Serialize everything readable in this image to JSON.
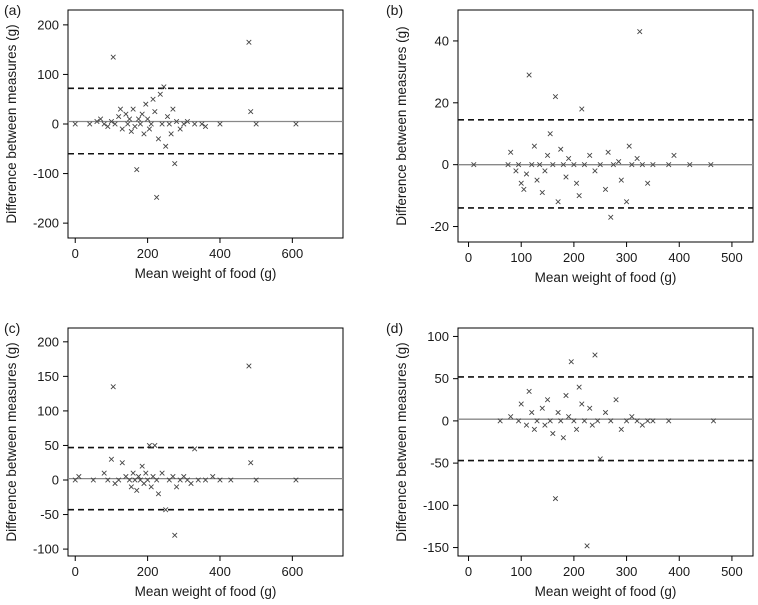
{
  "chart_data": [
    {
      "type": "scatter",
      "panel_label": "(a)",
      "xlabel": "Mean weight of food (g)",
      "ylabel": "Difference between measures (g)",
      "xlim": [
        -20,
        740
      ],
      "ylim": [
        -230,
        230
      ],
      "xticks": [
        0,
        200,
        400,
        600
      ],
      "yticks": [
        -200,
        -100,
        0,
        100,
        200
      ],
      "mean_line": 5,
      "upper_loa": 72,
      "lower_loa": -60,
      "points": [
        [
          0,
          0
        ],
        [
          40,
          0
        ],
        [
          60,
          5
        ],
        [
          70,
          10
        ],
        [
          80,
          0
        ],
        [
          90,
          -5
        ],
        [
          100,
          5
        ],
        [
          105,
          135
        ],
        [
          110,
          0
        ],
        [
          120,
          15
        ],
        [
          125,
          30
        ],
        [
          130,
          -10
        ],
        [
          140,
          20
        ],
        [
          145,
          0
        ],
        [
          150,
          10
        ],
        [
          155,
          -15
        ],
        [
          160,
          30
        ],
        [
          165,
          -5
        ],
        [
          170,
          -92
        ],
        [
          175,
          10
        ],
        [
          180,
          0
        ],
        [
          185,
          20
        ],
        [
          190,
          -20
        ],
        [
          195,
          40
        ],
        [
          200,
          10
        ],
        [
          205,
          -10
        ],
        [
          210,
          0
        ],
        [
          215,
          50
        ],
        [
          220,
          25
        ],
        [
          225,
          -148
        ],
        [
          230,
          -30
        ],
        [
          235,
          60
        ],
        [
          240,
          0
        ],
        [
          245,
          75
        ],
        [
          250,
          -45
        ],
        [
          255,
          15
        ],
        [
          260,
          0
        ],
        [
          265,
          -20
        ],
        [
          270,
          30
        ],
        [
          275,
          -80
        ],
        [
          280,
          5
        ],
        [
          290,
          -10
        ],
        [
          300,
          0
        ],
        [
          310,
          5
        ],
        [
          330,
          0
        ],
        [
          350,
          0
        ],
        [
          360,
          -5
        ],
        [
          400,
          0
        ],
        [
          480,
          165
        ],
        [
          485,
          25
        ],
        [
          500,
          0
        ],
        [
          610,
          0
        ]
      ]
    },
    {
      "type": "scatter",
      "panel_label": "(b)",
      "xlabel": "Mean weight of food (g)",
      "ylabel": "Difference between measures (g)",
      "xlim": [
        -20,
        540
      ],
      "ylim": [
        -25,
        50
      ],
      "xticks": [
        0,
        100,
        200,
        300,
        400,
        500
      ],
      "yticks": [
        -20,
        0,
        20,
        40
      ],
      "mean_line": 0,
      "upper_loa": 14.5,
      "lower_loa": -14,
      "points": [
        [
          10,
          0
        ],
        [
          75,
          0
        ],
        [
          80,
          4
        ],
        [
          90,
          -2
        ],
        [
          95,
          0
        ],
        [
          100,
          -6
        ],
        [
          105,
          -8
        ],
        [
          110,
          -3
        ],
        [
          115,
          29
        ],
        [
          120,
          0
        ],
        [
          125,
          6
        ],
        [
          130,
          -5
        ],
        [
          135,
          0
        ],
        [
          140,
          -9
        ],
        [
          145,
          -2
        ],
        [
          150,
          3
        ],
        [
          155,
          10
        ],
        [
          160,
          0
        ],
        [
          165,
          22
        ],
        [
          170,
          -12
        ],
        [
          175,
          5
        ],
        [
          180,
          0
        ],
        [
          185,
          -4
        ],
        [
          190,
          2
        ],
        [
          200,
          0
        ],
        [
          205,
          -6
        ],
        [
          210,
          -10
        ],
        [
          215,
          18
        ],
        [
          220,
          0
        ],
        [
          230,
          3
        ],
        [
          240,
          -2
        ],
        [
          250,
          0
        ],
        [
          260,
          -8
        ],
        [
          265,
          4
        ],
        [
          270,
          -17
        ],
        [
          275,
          0
        ],
        [
          285,
          1
        ],
        [
          290,
          -5
        ],
        [
          300,
          -12
        ],
        [
          305,
          6
        ],
        [
          310,
          0
        ],
        [
          320,
          2
        ],
        [
          325,
          43
        ],
        [
          330,
          0
        ],
        [
          340,
          -6
        ],
        [
          350,
          0
        ],
        [
          380,
          0
        ],
        [
          390,
          3
        ],
        [
          420,
          0
        ],
        [
          460,
          0
        ]
      ]
    },
    {
      "type": "scatter",
      "panel_label": "(c)",
      "xlabel": "Mean weight of food (g)",
      "ylabel": "Difference between measures (g)",
      "xlim": [
        -20,
        740
      ],
      "ylim": [
        -110,
        220
      ],
      "xticks": [
        0,
        200,
        400,
        600
      ],
      "yticks": [
        -100,
        -50,
        0,
        50,
        100,
        150,
        200
      ],
      "mean_line": 2,
      "upper_loa": 47,
      "lower_loa": -43,
      "points": [
        [
          0,
          0
        ],
        [
          10,
          5
        ],
        [
          50,
          0
        ],
        [
          80,
          10
        ],
        [
          90,
          0
        ],
        [
          100,
          30
        ],
        [
          105,
          135
        ],
        [
          110,
          -5
        ],
        [
          120,
          0
        ],
        [
          130,
          25
        ],
        [
          140,
          5
        ],
        [
          150,
          0
        ],
        [
          155,
          -10
        ],
        [
          160,
          10
        ],
        [
          165,
          0
        ],
        [
          170,
          -15
        ],
        [
          175,
          5
        ],
        [
          180,
          0
        ],
        [
          185,
          20
        ],
        [
          190,
          -5
        ],
        [
          195,
          10
        ],
        [
          200,
          0
        ],
        [
          205,
          50
        ],
        [
          210,
          -10
        ],
        [
          215,
          5
        ],
        [
          220,
          50
        ],
        [
          225,
          0
        ],
        [
          230,
          -20
        ],
        [
          240,
          10
        ],
        [
          250,
          -43
        ],
        [
          260,
          0
        ],
        [
          270,
          5
        ],
        [
          275,
          -80
        ],
        [
          280,
          -10
        ],
        [
          290,
          0
        ],
        [
          300,
          5
        ],
        [
          310,
          0
        ],
        [
          320,
          -5
        ],
        [
          330,
          45
        ],
        [
          340,
          0
        ],
        [
          360,
          0
        ],
        [
          380,
          5
        ],
        [
          400,
          0
        ],
        [
          430,
          0
        ],
        [
          480,
          165
        ],
        [
          485,
          25
        ],
        [
          500,
          0
        ],
        [
          610,
          0
        ]
      ]
    },
    {
      "type": "scatter",
      "panel_label": "(d)",
      "xlabel": "Mean weight of food (g)",
      "ylabel": "Difference between measures (g)",
      "xlim": [
        -20,
        540
      ],
      "ylim": [
        -160,
        110
      ],
      "xticks": [
        0,
        100,
        200,
        300,
        400,
        500
      ],
      "yticks": [
        -150,
        -100,
        -50,
        0,
        50,
        100
      ],
      "mean_line": 2,
      "upper_loa": 52,
      "lower_loa": -47,
      "points": [
        [
          60,
          0
        ],
        [
          80,
          5
        ],
        [
          95,
          0
        ],
        [
          100,
          20
        ],
        [
          110,
          -5
        ],
        [
          115,
          35
        ],
        [
          120,
          10
        ],
        [
          125,
          -10
        ],
        [
          130,
          0
        ],
        [
          140,
          15
        ],
        [
          145,
          -5
        ],
        [
          150,
          25
        ],
        [
          155,
          0
        ],
        [
          160,
          -15
        ],
        [
          165,
          -92
        ],
        [
          170,
          10
        ],
        [
          175,
          0
        ],
        [
          180,
          -20
        ],
        [
          185,
          30
        ],
        [
          190,
          5
        ],
        [
          195,
          70
        ],
        [
          200,
          0
        ],
        [
          205,
          -10
        ],
        [
          210,
          40
        ],
        [
          215,
          20
        ],
        [
          220,
          0
        ],
        [
          225,
          -148
        ],
        [
          230,
          15
        ],
        [
          235,
          -5
        ],
        [
          240,
          78
        ],
        [
          245,
          0
        ],
        [
          250,
          -45
        ],
        [
          260,
          10
        ],
        [
          270,
          0
        ],
        [
          280,
          25
        ],
        [
          290,
          -10
        ],
        [
          300,
          0
        ],
        [
          310,
          5
        ],
        [
          320,
          0
        ],
        [
          330,
          -5
        ],
        [
          340,
          0
        ],
        [
          350,
          0
        ],
        [
          380,
          0
        ],
        [
          465,
          0
        ]
      ]
    }
  ]
}
